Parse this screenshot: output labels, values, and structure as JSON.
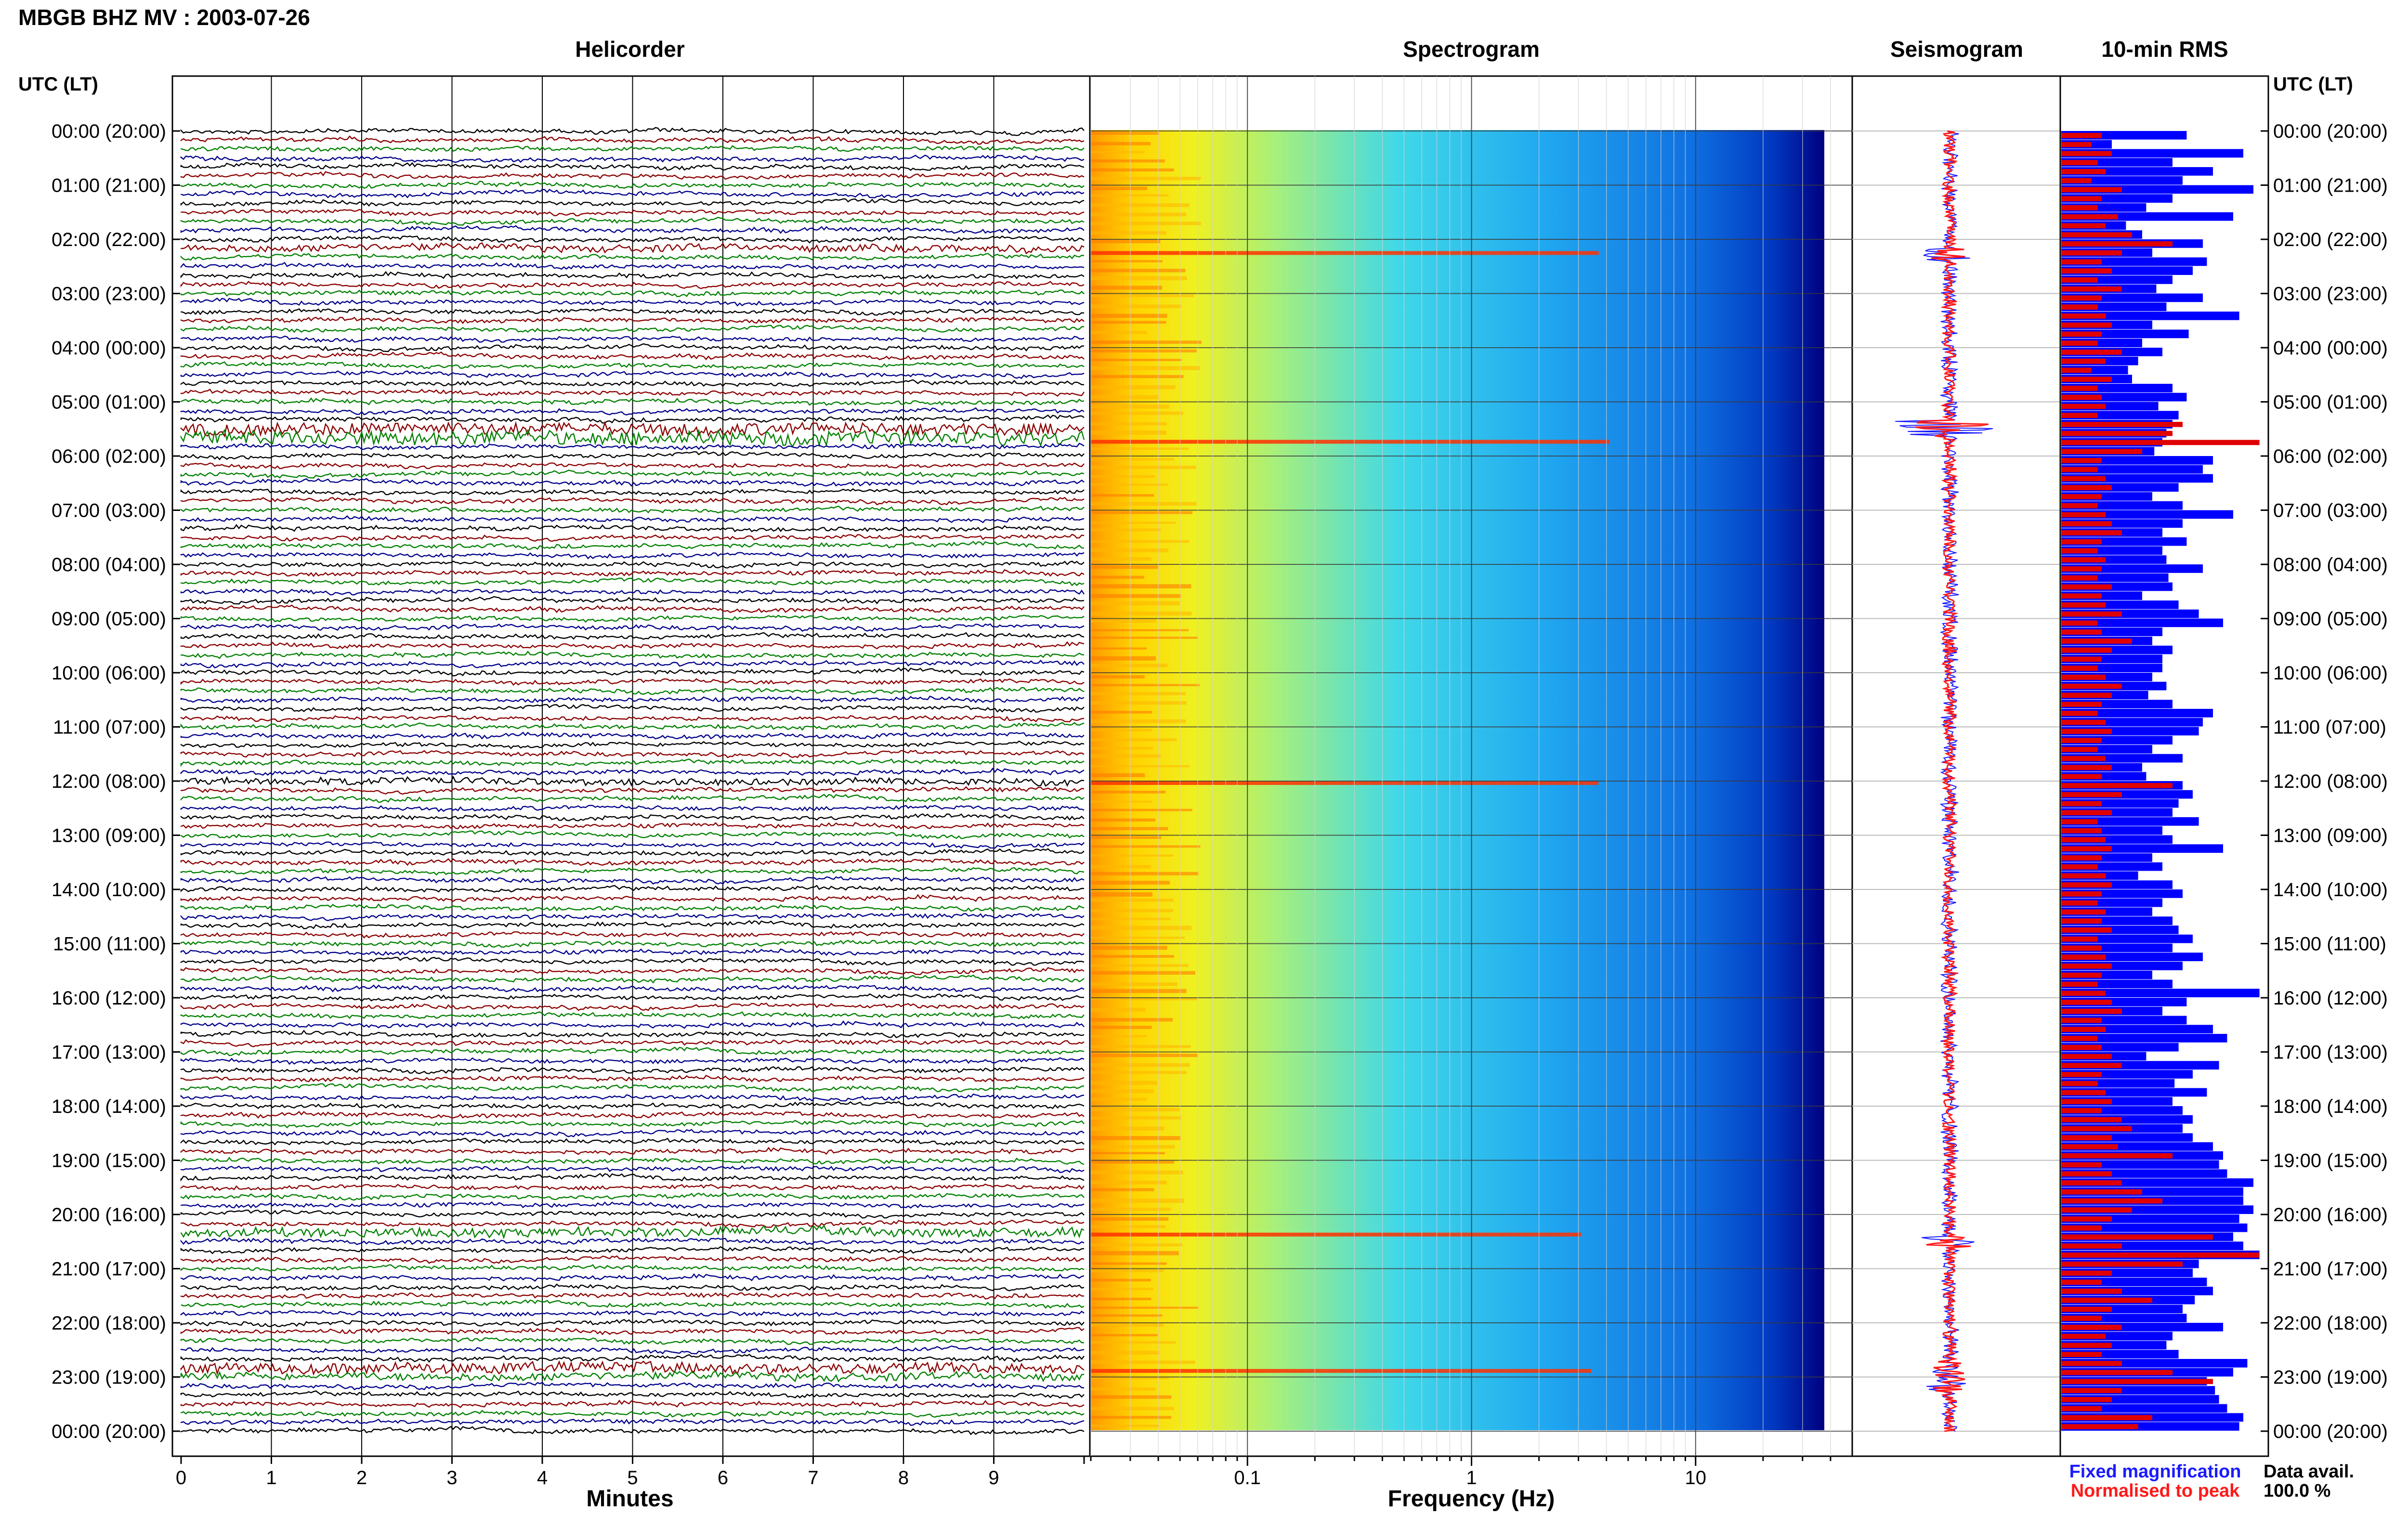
{
  "header": {
    "title": "MBGB BHZ MV : 2003-07-26"
  },
  "panels": {
    "helicorder": "Helicorder",
    "spectrogram": "Spectrogram",
    "seismogram": "Seismogram",
    "rms": "10-min RMS"
  },
  "axis": {
    "time_header": "UTC (LT)",
    "time_labels": [
      "00:00 (20:00)",
      "01:00 (21:00)",
      "02:00 (22:00)",
      "03:00 (23:00)",
      "04:00 (00:00)",
      "05:00 (01:00)",
      "06:00 (02:00)",
      "07:00 (03:00)",
      "08:00 (04:00)",
      "09:00 (05:00)",
      "10:00 (06:00)",
      "11:00 (07:00)",
      "12:00 (08:00)",
      "13:00 (09:00)",
      "14:00 (10:00)",
      "15:00 (11:00)",
      "16:00 (12:00)",
      "17:00 (13:00)",
      "18:00 (14:00)",
      "19:00 (15:00)",
      "20:00 (16:00)",
      "21:00 (17:00)",
      "22:00 (18:00)",
      "23:00 (19:00)",
      "00:00 (20:00)"
    ],
    "minutes_label": "Minutes",
    "minutes_ticks": [
      "0",
      "1",
      "2",
      "3",
      "4",
      "5",
      "6",
      "7",
      "8",
      "9"
    ],
    "frequency_label": "Frequency (Hz)",
    "frequency_ticks": [
      "0.1",
      "1",
      "10"
    ]
  },
  "legend": {
    "fixed": "Fixed magnification",
    "normalised": "Normalised to peak",
    "fixed_color": "#1a1aff",
    "normalised_color": "#ff1a1a"
  },
  "data_avail": {
    "label": "Data avail.",
    "value": "100.0 %"
  },
  "colors": {
    "trace_cycle": [
      "#000000",
      "#8b0000",
      "#008000",
      "#00008b"
    ],
    "rms_fixed": "#0000ff",
    "rms_normalised": "#e00000"
  },
  "chart_data": [
    {
      "type": "line",
      "title": "Helicorder",
      "xlabel": "Minutes",
      "xlim": [
        0,
        10
      ],
      "rows_per_hour": 6,
      "hours": 24
    },
    {
      "type": "heatmap",
      "title": "Spectrogram",
      "xlabel": "Frequency (Hz)",
      "xscale": "log",
      "xlim": [
        0.02,
        50
      ],
      "colormap": [
        "#00008b",
        "#0050ff",
        "#00c8ff",
        "#80ff80",
        "#ffff00",
        "#ff8000",
        "#ff0000"
      ],
      "high_energy_rows_utc": [
        "02:20",
        "05:30",
        "12:00",
        "20:30",
        "23:00"
      ]
    },
    {
      "type": "line",
      "title": "Seismogram",
      "series": [
        {
          "name": "Fixed magnification"
        },
        {
          "name": "Normalised to peak"
        }
      ]
    },
    {
      "type": "bar",
      "title": "10-min RMS",
      "orientation": "horizontal",
      "series": [
        {
          "name": "Fixed magnification",
          "values": [
            0.62,
            0.25,
            0.9,
            0.55,
            0.75,
            0.6,
            0.95,
            0.55,
            0.42,
            0.85,
            0.32,
            0.4,
            0.7,
            0.45,
            0.72,
            0.65,
            0.55,
            0.47,
            0.7,
            0.52,
            0.88,
            0.45,
            0.63,
            0.4,
            0.5,
            0.38,
            0.33,
            0.35,
            0.55,
            0.62,
            0.48,
            0.58,
            0.55,
            0.52,
            0.5,
            0.46,
            0.75,
            0.7,
            0.75,
            0.58,
            0.45,
            0.6,
            0.85,
            0.6,
            0.5,
            0.62,
            0.5,
            0.52,
            0.7,
            0.53,
            0.55,
            0.4,
            0.58,
            0.68,
            0.8,
            0.5,
            0.45,
            0.55,
            0.5,
            0.5,
            0.45,
            0.52,
            0.43,
            0.55,
            0.75,
            0.7,
            0.68,
            0.55,
            0.45,
            0.6,
            0.4,
            0.42,
            0.6,
            0.65,
            0.58,
            0.55,
            0.68,
            0.5,
            0.55,
            0.8,
            0.45,
            0.5,
            0.38,
            0.55,
            0.6,
            0.5,
            0.45,
            0.55,
            0.58,
            0.65,
            0.55,
            0.7,
            0.6,
            0.45,
            0.55,
            0.98,
            0.62,
            0.5,
            0.62,
            0.75,
            0.82,
            0.58,
            0.42,
            0.78,
            0.65,
            0.56,
            0.72,
            0.55,
            0.6,
            0.65,
            0.6,
            0.65,
            0.75,
            0.8,
            0.78,
            0.82,
            0.95,
            0.9,
            0.9,
            0.95,
            0.88,
            0.92,
            0.85,
            0.9,
            0.98,
            0.68,
            0.65,
            0.72,
            0.75,
            0.66,
            0.6,
            0.62,
            0.8,
            0.55,
            0.52,
            0.58,
            0.92,
            0.85,
            0.72,
            0.76,
            0.78,
            0.82,
            0.9,
            0.88
          ]
        },
        {
          "name": "Normalised to peak",
          "values": [
            0.2,
            0.15,
            0.25,
            0.18,
            0.22,
            0.15,
            0.3,
            0.2,
            0.18,
            0.28,
            0.22,
            0.35,
            0.55,
            0.3,
            0.2,
            0.25,
            0.18,
            0.3,
            0.2,
            0.18,
            0.22,
            0.25,
            0.2,
            0.18,
            0.3,
            0.22,
            0.15,
            0.25,
            0.18,
            0.2,
            0.22,
            0.18,
            0.6,
            0.55,
            0.98,
            0.4,
            0.2,
            0.18,
            0.22,
            0.25,
            0.2,
            0.18,
            0.22,
            0.25,
            0.3,
            0.2,
            0.18,
            0.22,
            0.2,
            0.18,
            0.25,
            0.2,
            0.22,
            0.3,
            0.18,
            0.2,
            0.35,
            0.25,
            0.2,
            0.18,
            0.22,
            0.3,
            0.25,
            0.2,
            0.18,
            0.22,
            0.25,
            0.2,
            0.18,
            0.22,
            0.25,
            0.2,
            0.55,
            0.3,
            0.2,
            0.25,
            0.18,
            0.2,
            0.22,
            0.25,
            0.2,
            0.18,
            0.22,
            0.25,
            0.2,
            0.18,
            0.22,
            0.2,
            0.25,
            0.18,
            0.2,
            0.22,
            0.25,
            0.2,
            0.18,
            0.22,
            0.25,
            0.3,
            0.2,
            0.22,
            0.18,
            0.2,
            0.25,
            0.3,
            0.2,
            0.18,
            0.22,
            0.25,
            0.2,
            0.3,
            0.35,
            0.25,
            0.28,
            0.55,
            0.2,
            0.25,
            0.3,
            0.4,
            0.5,
            0.35,
            0.25,
            0.2,
            0.75,
            0.3,
            0.98,
            0.6,
            0.25,
            0.2,
            0.3,
            0.45,
            0.25,
            0.2,
            0.3,
            0.22,
            0.25,
            0.2,
            0.3,
            0.55,
            0.75,
            0.3,
            0.25,
            0.2,
            0.45,
            0.38
          ]
        }
      ]
    }
  ]
}
